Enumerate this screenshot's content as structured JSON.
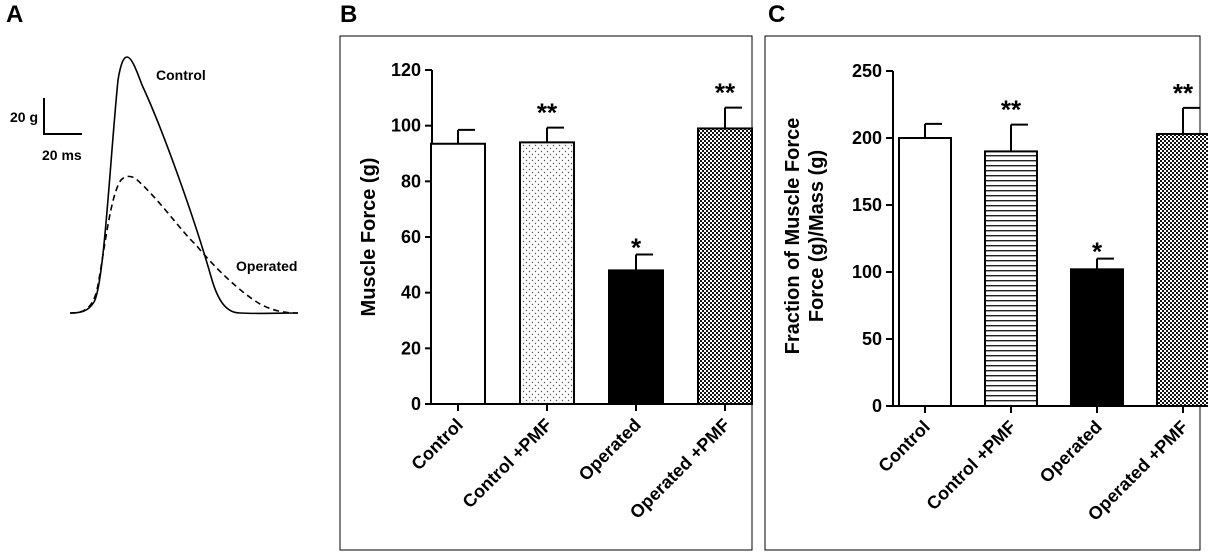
{
  "figure": {
    "panels": [
      {
        "letter": "A",
        "scale": {
          "force": "20 g",
          "time": "20 ms"
        },
        "traces": [
          {
            "name": "Control",
            "style": "solid"
          },
          {
            "name": "Operated",
            "style": "dashed"
          }
        ]
      },
      {
        "letter": "B"
      },
      {
        "letter": "C"
      }
    ]
  },
  "chart_data": [
    {
      "type": "bar",
      "panel": "B",
      "ylabel": "Muscle Force (g)",
      "ylim": [
        0,
        120
      ],
      "yticks": [
        0,
        20,
        40,
        60,
        80,
        100,
        120
      ],
      "categories": [
        "Control",
        "Control +PMF",
        "Operated",
        "Operated +PMF"
      ],
      "values": [
        93.5,
        94,
        48,
        99
      ],
      "errors": [
        5,
        5.3,
        5.7,
        7.5
      ],
      "fills": [
        "white",
        "dots",
        "black",
        "crosshatch"
      ],
      "annotations": [
        "",
        "**",
        "*",
        "**"
      ]
    },
    {
      "type": "bar",
      "panel": "C",
      "ylabel": "Fraction of Muscle Force Force (g)/Mass (g)",
      "ylabel_lines": [
        "Fraction of Muscle Force",
        "Force (g)/Mass (g)"
      ],
      "ylim": [
        0,
        250
      ],
      "yticks": [
        0,
        50,
        100,
        150,
        200,
        250
      ],
      "categories": [
        "Control",
        "Control +PMF",
        "Operated",
        "Operated +PMF"
      ],
      "values": [
        200,
        190,
        102,
        203
      ],
      "errors": [
        10.5,
        20,
        8,
        19.5
      ],
      "fills": [
        "white",
        "hlines",
        "black",
        "crosshatch"
      ],
      "annotations": [
        "",
        "**",
        "*",
        "**"
      ]
    }
  ],
  "colors": {
    "ink": "#000000",
    "background": "#ffffff"
  }
}
